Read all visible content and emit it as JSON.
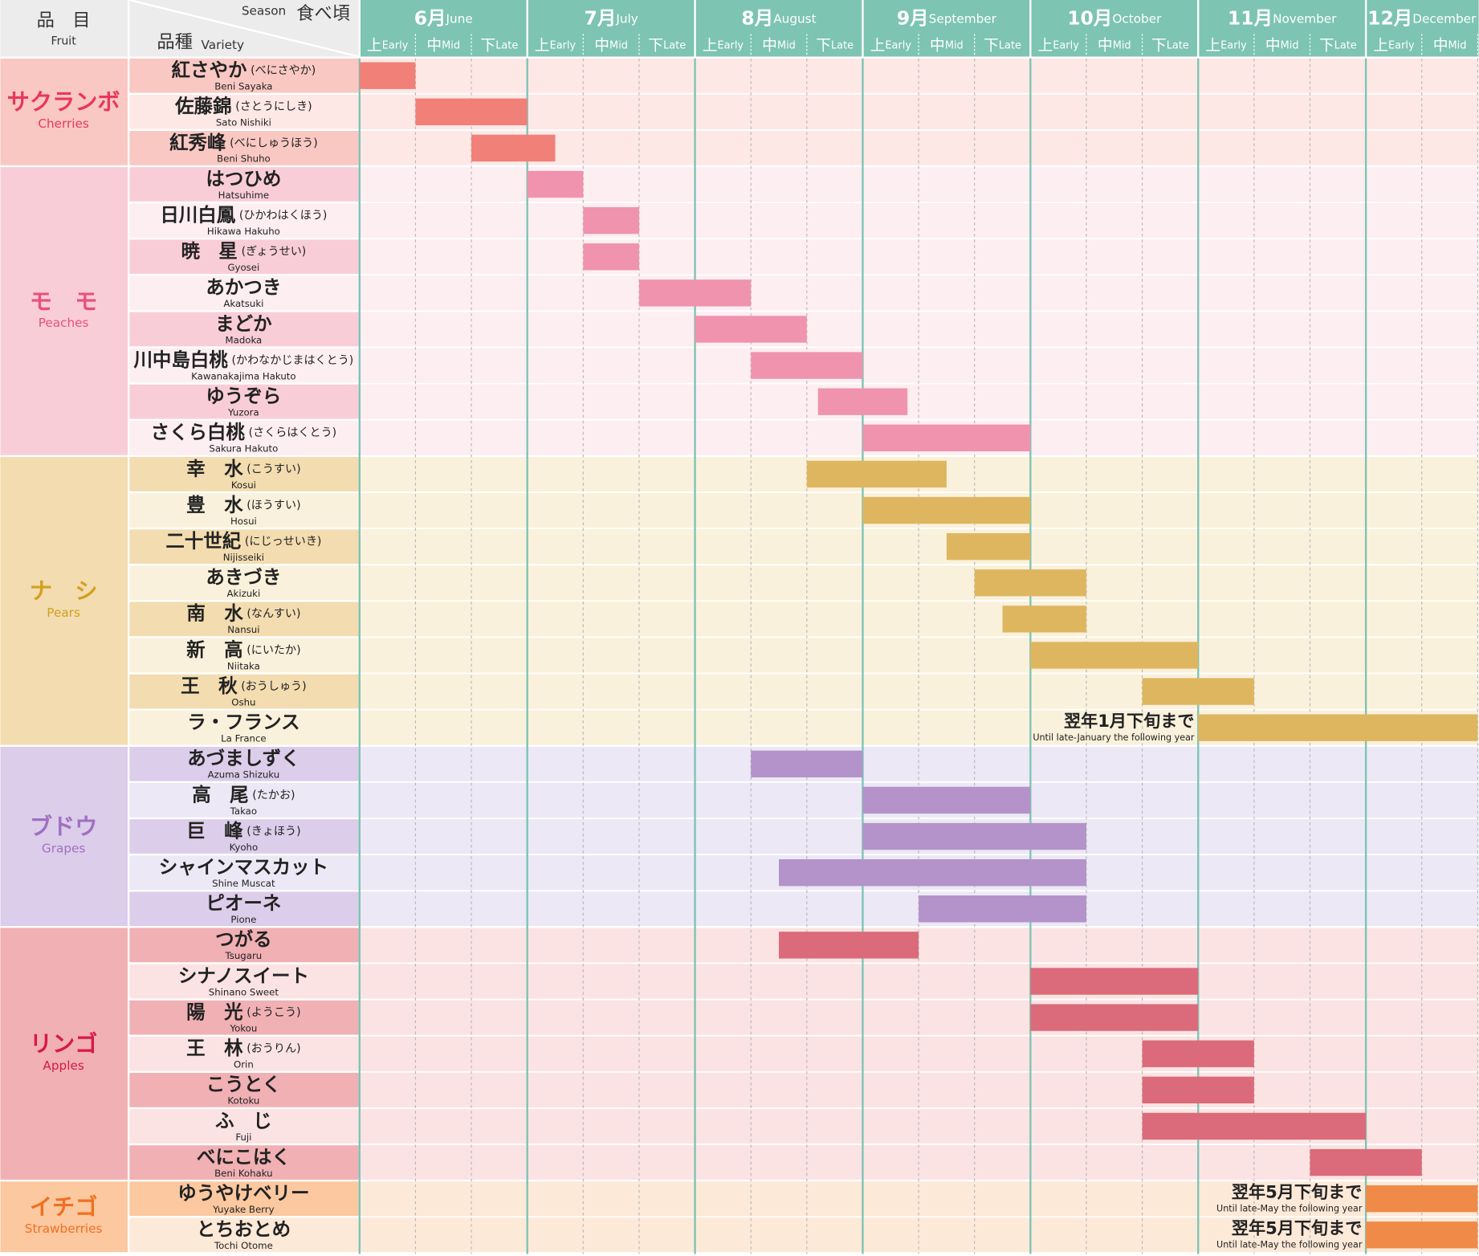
{
  "header": {
    "fruit_ja": "品　目",
    "fruit_en": "Fruit",
    "season_en": "Season",
    "season_ja": "食べ頃",
    "variety_ja": "品種",
    "variety_en": "Variety"
  },
  "chart_data": {
    "type": "gantt",
    "xlim": [
      0,
      20
    ],
    "months": [
      {
        "ja": "6月",
        "en": "June"
      },
      {
        "ja": "7月",
        "en": "July"
      },
      {
        "ja": "8月",
        "en": "August"
      },
      {
        "ja": "9月",
        "en": "September"
      },
      {
        "ja": "10月",
        "en": "October"
      },
      {
        "ja": "11月",
        "en": "November"
      },
      {
        "ja": "12月",
        "en": "December"
      }
    ],
    "periods": [
      {
        "ja": "上",
        "en": "Early"
      },
      {
        "ja": "中",
        "en": "Mid"
      },
      {
        "ja": "下",
        "en": "Late"
      }
    ],
    "groups": [
      {
        "name_ja": "サクランボ",
        "name_en": "Cherries",
        "color": "#f08078",
        "text_color": "#e8385a",
        "cell_color": "#f9c8c3",
        "area_color": "#fde8e6",
        "items": [
          {
            "name": "紅さやか",
            "reading": "(べにさやか)",
            "romaji": "Beni Sayaka",
            "start": 0,
            "end": 1
          },
          {
            "name": "佐藤錦",
            "reading": "(さとうにしき)",
            "romaji": "Sato Nishiki",
            "start": 1,
            "end": 3
          },
          {
            "name": "紅秀峰",
            "reading": "(べにしゅうほう)",
            "romaji": "Beni Shuho",
            "start": 2,
            "end": 3.5
          }
        ]
      },
      {
        "name_ja": "モ　モ",
        "name_en": "Peaches",
        "color": "#f093ae",
        "text_color": "#e8507a",
        "cell_color": "#f9cdd8",
        "area_color": "#fdeef2",
        "items": [
          {
            "name": "はつひめ",
            "romaji": "Hatsuhime",
            "start": 3,
            "end": 4
          },
          {
            "name": "日川白鳳",
            "reading": "(ひかわはくほう)",
            "romaji": "Hikawa Hakuho",
            "start": 4,
            "end": 5
          },
          {
            "name": "暁　星",
            "reading": "(ぎょうせい)",
            "romaji": "Gyosei",
            "start": 4,
            "end": 5
          },
          {
            "name": "あかつき",
            "romaji": "Akatsuki",
            "start": 5,
            "end": 7
          },
          {
            "name": "まどか",
            "romaji": "Madoka",
            "start": 6,
            "end": 8
          },
          {
            "name": "川中島白桃",
            "reading": "(かわなかじまはくとう)",
            "romaji": "Kawanakajima Hakuto",
            "start": 7,
            "end": 9
          },
          {
            "name": "ゆうぞら",
            "romaji": "Yuzora",
            "start": 8.2,
            "end": 9.8
          },
          {
            "name": "さくら白桃",
            "reading": "(さくらはくとう)",
            "romaji": "Sakura Hakuto",
            "start": 9,
            "end": 12
          }
        ]
      },
      {
        "name_ja": "ナ　シ",
        "name_en": "Pears",
        "color": "#dfb660",
        "text_color": "#d4a020",
        "cell_color": "#f2dcb0",
        "area_color": "#faf1dc",
        "items": [
          {
            "name": "幸　水",
            "reading": "(こうすい)",
            "romaji": "Kosui",
            "start": 8,
            "end": 10.5
          },
          {
            "name": "豊　水",
            "reading": "(ほうすい)",
            "romaji": "Hosui",
            "start": 9,
            "end": 12
          },
          {
            "name": "二十世紀",
            "reading": "(にじっせいき)",
            "romaji": "Nijisseiki",
            "start": 10.5,
            "end": 12
          },
          {
            "name": "あきづき",
            "romaji": "Akizuki",
            "start": 11,
            "end": 13
          },
          {
            "name": "南　水",
            "reading": "(なんすい)",
            "romaji": "Nansui",
            "start": 11.5,
            "end": 13
          },
          {
            "name": "新　高",
            "reading": "(にいたか)",
            "romaji": "Niitaka",
            "start": 12,
            "end": 15
          },
          {
            "name": "王　秋",
            "reading": "(おうしゅう)",
            "romaji": "Oshu",
            "start": 14,
            "end": 16
          },
          {
            "name": "ラ・フランス",
            "romaji": "La France",
            "start": 15,
            "end": 20,
            "note_ja": "翌年1月下旬まで",
            "note_en": "Until late-January the following year"
          }
        ]
      },
      {
        "name_ja": "ブドウ",
        "name_en": "Grapes",
        "color": "#b393c9",
        "text_color": "#a070c0",
        "cell_color": "#dccdea",
        "area_color": "#ece8f5",
        "items": [
          {
            "name": "あづましずく",
            "romaji": "Azuma Shizuku",
            "start": 7,
            "end": 9
          },
          {
            "name": "高　尾",
            "reading": "(たかお)",
            "romaji": "Takao",
            "start": 9,
            "end": 12
          },
          {
            "name": "巨　峰",
            "reading": "(きょほう)",
            "romaji": "Kyoho",
            "start": 9,
            "end": 13
          },
          {
            "name": "シャインマスカット",
            "romaji": "Shine Muscat",
            "start": 7.5,
            "end": 13
          },
          {
            "name": "ピオーネ",
            "romaji": "Pione",
            "start": 10,
            "end": 13
          }
        ]
      },
      {
        "name_ja": "リンゴ",
        "name_en": "Apples",
        "color": "#db6b7a",
        "text_color": "#d8184a",
        "cell_color": "#f0b0b4",
        "area_color": "#fbe3e3",
        "items": [
          {
            "name": "つがる",
            "romaji": "Tsugaru",
            "start": 7.5,
            "end": 10
          },
          {
            "name": "シナノスイート",
            "romaji": "Shinano Sweet",
            "start": 12,
            "end": 15
          },
          {
            "name": "陽　光",
            "reading": "(ようこう)",
            "romaji": "Yokou",
            "start": 12,
            "end": 15
          },
          {
            "name": "王　林",
            "reading": "(おうりん)",
            "romaji": "Orin",
            "start": 14,
            "end": 16
          },
          {
            "name": "こうとく",
            "romaji": "Kotoku",
            "start": 14,
            "end": 16
          },
          {
            "name": "ふ　じ",
            "romaji": "Fuji",
            "start": 14,
            "end": 18
          },
          {
            "name": "べにこはく",
            "romaji": "Beni Kohaku",
            "start": 17,
            "end": 19
          }
        ]
      },
      {
        "name_ja": "イチゴ",
        "name_en": "Strawberries",
        "color": "#f08a48",
        "text_color": "#f07020",
        "cell_color": "#fbc8a0",
        "area_color": "#fde9d8",
        "items": [
          {
            "name": "ゆうやけベリー",
            "romaji": "Yuyake Berry",
            "start": 18,
            "end": 20,
            "note_ja": "翌年5月下旬まで",
            "note_en": "Until late-May the following year"
          },
          {
            "name": "とちおとめ",
            "romaji": "Tochi Otome",
            "start": 18,
            "end": 20,
            "note_ja": "翌年5月下旬まで",
            "note_en": "Until late-May the following year"
          }
        ]
      }
    ]
  }
}
